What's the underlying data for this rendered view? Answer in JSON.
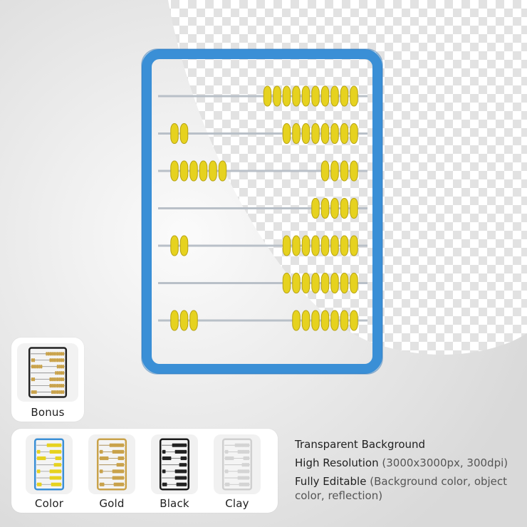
{
  "bonus": {
    "label": "Bonus"
  },
  "variants": [
    {
      "id": "color",
      "label": "Color"
    },
    {
      "id": "gold",
      "label": "Gold"
    },
    {
      "id": "black",
      "label": "Black"
    },
    {
      "id": "clay",
      "label": "Clay"
    }
  ],
  "features": [
    {
      "title": "Transparent Background",
      "detail": ""
    },
    {
      "title": "High Resolution",
      "detail": "(3000x3000px, 300dpi)"
    },
    {
      "title": "Fully Editable",
      "detail": "(Background color, object color, reflection)"
    }
  ],
  "abacus": {
    "frame_color": "#3a8fd6",
    "bead_color": "#e6d21f",
    "rod_color": "#b9c0c8",
    "rows": [
      {
        "left_beads": 0,
        "right_beads": 10
      },
      {
        "left_beads": 2,
        "right_beads": 8
      },
      {
        "left_beads": 6,
        "right_beads": 4
      },
      {
        "left_beads": 0,
        "right_beads": 5
      },
      {
        "left_beads": 2,
        "right_beads": 8
      },
      {
        "left_beads": 0,
        "right_beads": 8
      },
      {
        "left_beads": 3,
        "right_beads": 7
      }
    ]
  }
}
